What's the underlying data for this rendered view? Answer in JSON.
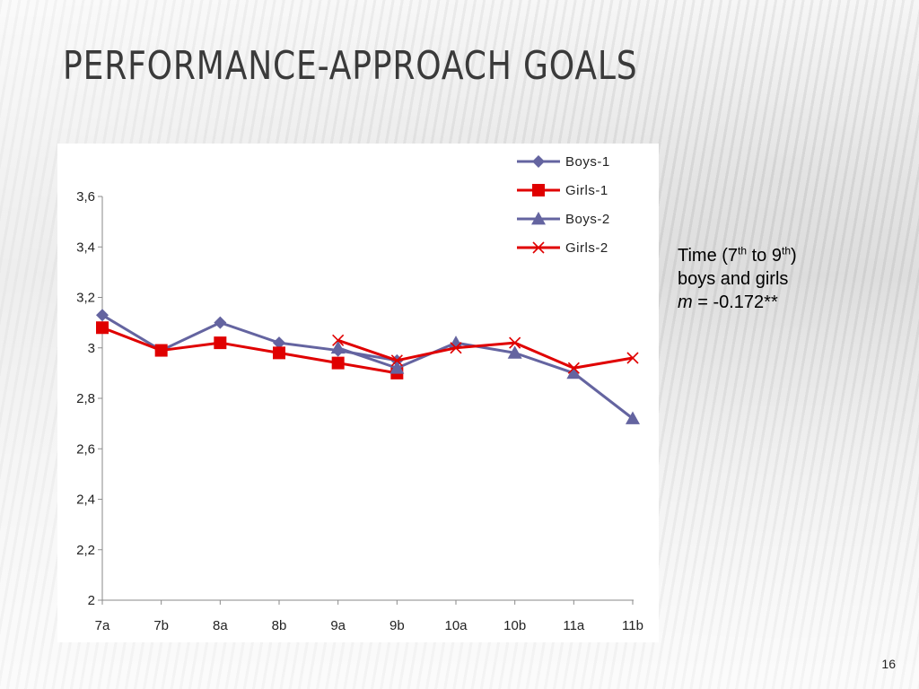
{
  "slide": {
    "title": "Performance-approach goals",
    "page_number": "16"
  },
  "note": {
    "line1_a": "Time (7",
    "line1_sup1": "th",
    "line1_b": " to 9",
    "line1_sup2": "th",
    "line1_c": ")",
    "line2": "boys and girls",
    "line3_var": "m",
    "line3_rest": " = -0.172**"
  },
  "colors": {
    "boys": "#6464A0",
    "girls": "#E00000"
  },
  "chart_data": {
    "type": "line",
    "title": "",
    "xlabel": "",
    "ylabel": "",
    "categories": [
      "7a",
      "7b",
      "8a",
      "8b",
      "9a",
      "9b",
      "10a",
      "10b",
      "11a",
      "11b"
    ],
    "ylim": [
      2,
      3.6
    ],
    "yticks": [
      2,
      2.2,
      2.4,
      2.6,
      2.8,
      3,
      3.2,
      3.4,
      3.6
    ],
    "ytick_labels": [
      "2",
      "2,2",
      "2,4",
      "2,6",
      "2,8",
      "3",
      "3,2",
      "3,4",
      "3,6"
    ],
    "grid": false,
    "legend_position": "top-right",
    "series": [
      {
        "name": "Boys-1",
        "marker": "diamond",
        "color": "#6464A0",
        "values": [
          3.13,
          2.99,
          3.1,
          3.02,
          2.99,
          2.95,
          null,
          null,
          null,
          null
        ]
      },
      {
        "name": "Girls-1",
        "marker": "square",
        "color": "#E00000",
        "values": [
          3.08,
          2.99,
          3.02,
          2.98,
          2.94,
          2.9,
          null,
          null,
          null,
          null
        ]
      },
      {
        "name": "Boys-2",
        "marker": "triangle",
        "color": "#6464A0",
        "values": [
          null,
          null,
          null,
          null,
          3.0,
          2.92,
          3.02,
          2.98,
          2.9,
          2.72
        ]
      },
      {
        "name": "Girls-2",
        "marker": "cross",
        "color": "#E00000",
        "values": [
          null,
          null,
          null,
          null,
          3.03,
          2.95,
          3.0,
          3.02,
          2.92,
          2.96
        ]
      }
    ]
  }
}
